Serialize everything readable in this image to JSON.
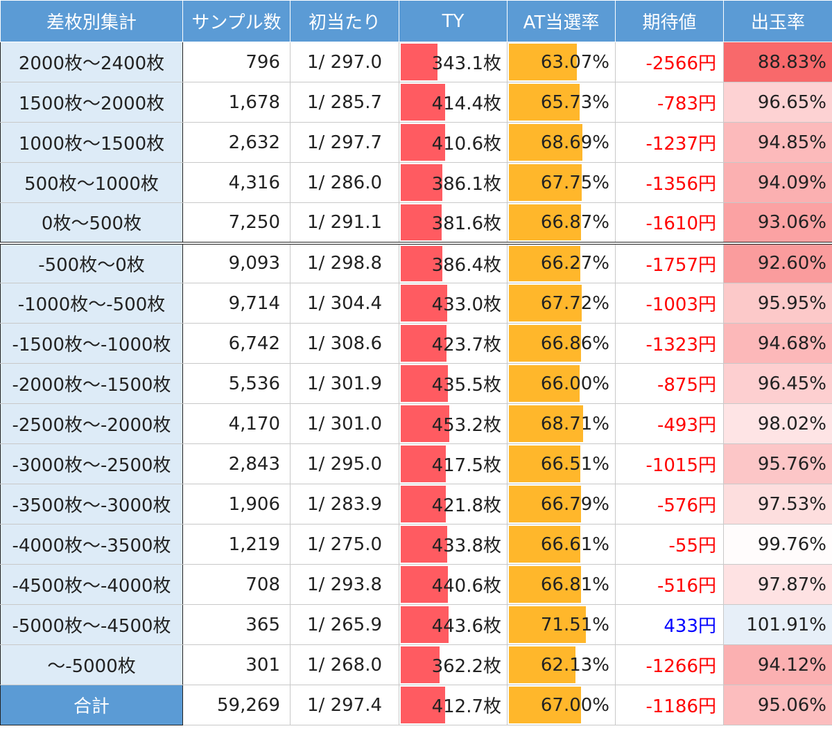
{
  "colors": {
    "header_bg": "#5b9bd5",
    "label_bg": "#ddebf7",
    "ty_bar": "#ff5b61",
    "at_bar": "#ffb72b",
    "negative": "#ff0000",
    "positive": "#0000ff",
    "payout_low": "#f8696b",
    "payout_mid": "#ffffff",
    "payout_high": "#e6eef8"
  },
  "chart_data": {
    "type": "table",
    "columns": [
      "差枚別集計",
      "サンプル数",
      "初当たり",
      "TY",
      "AT当選率",
      "期待値",
      "出玉率"
    ],
    "rows": [
      {
        "label": "2000枚〜2400枚",
        "samples": "796",
        "hit": "1/ 297.0",
        "ty": 343.1,
        "ty_text": "343.1枚",
        "at": 63.07,
        "at_text": "63.07%",
        "ev": -2566,
        "ev_text": "-2566円",
        "payout": 88.83,
        "payout_text": "88.83%"
      },
      {
        "label": "1500枚〜2000枚",
        "samples": "1,678",
        "hit": "1/ 285.7",
        "ty": 414.4,
        "ty_text": "414.4枚",
        "at": 65.73,
        "at_text": "65.73%",
        "ev": -783,
        "ev_text": "-783円",
        "payout": 96.65,
        "payout_text": "96.65%"
      },
      {
        "label": "1000枚〜1500枚",
        "samples": "2,632",
        "hit": "1/ 297.7",
        "ty": 410.6,
        "ty_text": "410.6枚",
        "at": 68.69,
        "at_text": "68.69%",
        "ev": -1237,
        "ev_text": "-1237円",
        "payout": 94.85,
        "payout_text": "94.85%"
      },
      {
        "label": "500枚〜1000枚",
        "samples": "4,316",
        "hit": "1/ 286.0",
        "ty": 386.1,
        "ty_text": "386.1枚",
        "at": 67.75,
        "at_text": "67.75%",
        "ev": -1356,
        "ev_text": "-1356円",
        "payout": 94.09,
        "payout_text": "94.09%"
      },
      {
        "label": "0枚〜500枚",
        "samples": "7,250",
        "hit": "1/ 291.1",
        "ty": 381.6,
        "ty_text": "381.6枚",
        "at": 66.87,
        "at_text": "66.87%",
        "ev": -1610,
        "ev_text": "-1610円",
        "payout": 93.06,
        "payout_text": "93.06%"
      },
      {
        "label": "-500枚〜0枚",
        "samples": "9,093",
        "hit": "1/ 298.8",
        "ty": 386.4,
        "ty_text": "386.4枚",
        "at": 66.27,
        "at_text": "66.27%",
        "ev": -1757,
        "ev_text": "-1757円",
        "payout": 92.6,
        "payout_text": "92.60%"
      },
      {
        "label": "-1000枚〜-500枚",
        "samples": "9,714",
        "hit": "1/ 304.4",
        "ty": 433.0,
        "ty_text": "433.0枚",
        "at": 67.72,
        "at_text": "67.72%",
        "ev": -1003,
        "ev_text": "-1003円",
        "payout": 95.95,
        "payout_text": "95.95%"
      },
      {
        "label": "-1500枚〜-1000枚",
        "samples": "6,742",
        "hit": "1/ 308.6",
        "ty": 423.7,
        "ty_text": "423.7枚",
        "at": 66.86,
        "at_text": "66.86%",
        "ev": -1323,
        "ev_text": "-1323円",
        "payout": 94.68,
        "payout_text": "94.68%"
      },
      {
        "label": "-2000枚〜-1500枚",
        "samples": "5,536",
        "hit": "1/ 301.9",
        "ty": 435.5,
        "ty_text": "435.5枚",
        "at": 66.0,
        "at_text": "66.00%",
        "ev": -875,
        "ev_text": "-875円",
        "payout": 96.45,
        "payout_text": "96.45%"
      },
      {
        "label": "-2500枚〜-2000枚",
        "samples": "4,170",
        "hit": "1/ 301.0",
        "ty": 453.2,
        "ty_text": "453.2枚",
        "at": 68.71,
        "at_text": "68.71%",
        "ev": -493,
        "ev_text": "-493円",
        "payout": 98.02,
        "payout_text": "98.02%"
      },
      {
        "label": "-3000枚〜-2500枚",
        "samples": "2,843",
        "hit": "1/ 295.0",
        "ty": 417.5,
        "ty_text": "417.5枚",
        "at": 66.51,
        "at_text": "66.51%",
        "ev": -1015,
        "ev_text": "-1015円",
        "payout": 95.76,
        "payout_text": "95.76%"
      },
      {
        "label": "-3500枚〜-3000枚",
        "samples": "1,906",
        "hit": "1/ 283.9",
        "ty": 421.8,
        "ty_text": "421.8枚",
        "at": 66.79,
        "at_text": "66.79%",
        "ev": -576,
        "ev_text": "-576円",
        "payout": 97.53,
        "payout_text": "97.53%"
      },
      {
        "label": "-4000枚〜-3500枚",
        "samples": "1,219",
        "hit": "1/ 275.0",
        "ty": 433.8,
        "ty_text": "433.8枚",
        "at": 66.61,
        "at_text": "66.61%",
        "ev": -55,
        "ev_text": "-55円",
        "payout": 99.76,
        "payout_text": "99.76%"
      },
      {
        "label": "-4500枚〜-4000枚",
        "samples": "708",
        "hit": "1/ 293.8",
        "ty": 440.6,
        "ty_text": "440.6枚",
        "at": 66.81,
        "at_text": "66.81%",
        "ev": -516,
        "ev_text": "-516円",
        "payout": 97.87,
        "payout_text": "97.87%"
      },
      {
        "label": "-5000枚〜-4500枚",
        "samples": "365",
        "hit": "1/ 265.9",
        "ty": 443.6,
        "ty_text": "443.6枚",
        "at": 71.51,
        "at_text": "71.51%",
        "ev": 433,
        "ev_text": "433円",
        "payout": 101.91,
        "payout_text": "101.91%"
      },
      {
        "label": "〜-5000枚",
        "samples": "301",
        "hit": "1/ 268.0",
        "ty": 362.2,
        "ty_text": "362.2枚",
        "at": 62.13,
        "at_text": "62.13%",
        "ev": -1266,
        "ev_text": "-1266円",
        "payout": 94.12,
        "payout_text": "94.12%"
      }
    ],
    "total": {
      "label": "合計",
      "samples": "59,269",
      "hit": "1/ 297.4",
      "ty": 412.7,
      "ty_text": "412.7枚",
      "at": 67.0,
      "at_text": "67.00%",
      "ev": -1186,
      "ev_text": "-1186円",
      "payout": 95.06,
      "payout_text": "95.06%"
    },
    "ty_scale_max": 1000,
    "at_scale_max": 100
  }
}
